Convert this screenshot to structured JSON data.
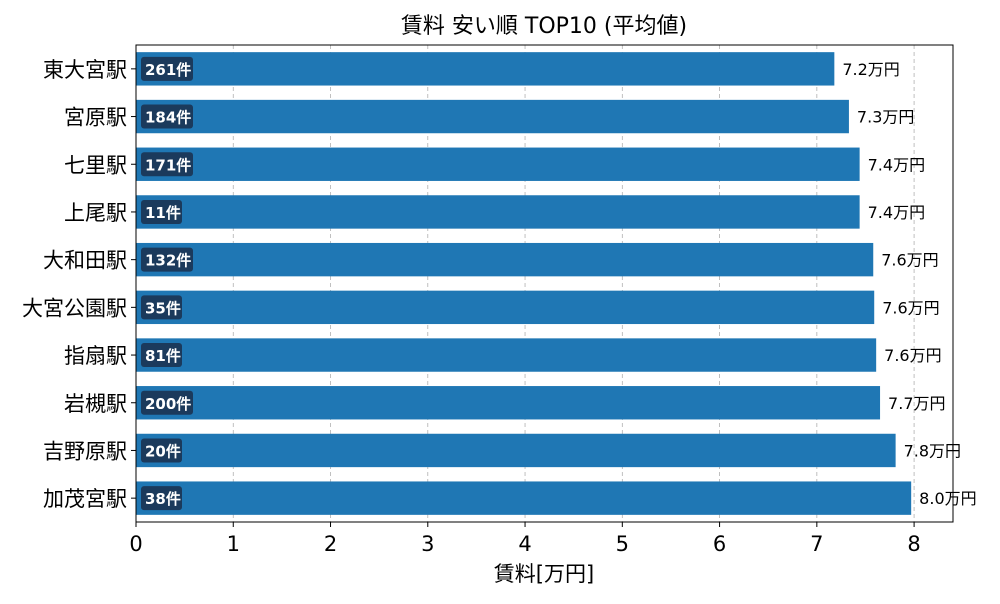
{
  "chart_data": {
    "type": "bar",
    "orientation": "horizontal",
    "title": "賃料 安い順 TOP10 (平均値)",
    "xlabel": "賃料[万円]",
    "ylabel": "",
    "xlim": [
      0,
      8.4
    ],
    "xticks": [
      0,
      1,
      2,
      3,
      4,
      5,
      6,
      7,
      8
    ],
    "grid": "vertical dashed",
    "legend": "none",
    "bar_color": "#1f77b4",
    "count_badge_color": "#1b3a5c",
    "categories": [
      "東大宮駅",
      "宮原駅",
      "七里駅",
      "上尾駅",
      "大和田駅",
      "大宮公園駅",
      "指扇駅",
      "岩槻駅",
      "吉野原駅",
      "加茂宮駅"
    ],
    "values": [
      7.18,
      7.33,
      7.44,
      7.44,
      7.58,
      7.59,
      7.61,
      7.65,
      7.81,
      7.97
    ],
    "value_labels": [
      "7.2万円",
      "7.3万円",
      "7.4万円",
      "7.4万円",
      "7.6万円",
      "7.6万円",
      "7.6万円",
      "7.7万円",
      "7.8万円",
      "8.0万円"
    ],
    "count_labels": [
      "261件",
      "184件",
      "171件",
      "11件",
      "132件",
      "35件",
      "81件",
      "200件",
      "20件",
      "38件"
    ]
  }
}
